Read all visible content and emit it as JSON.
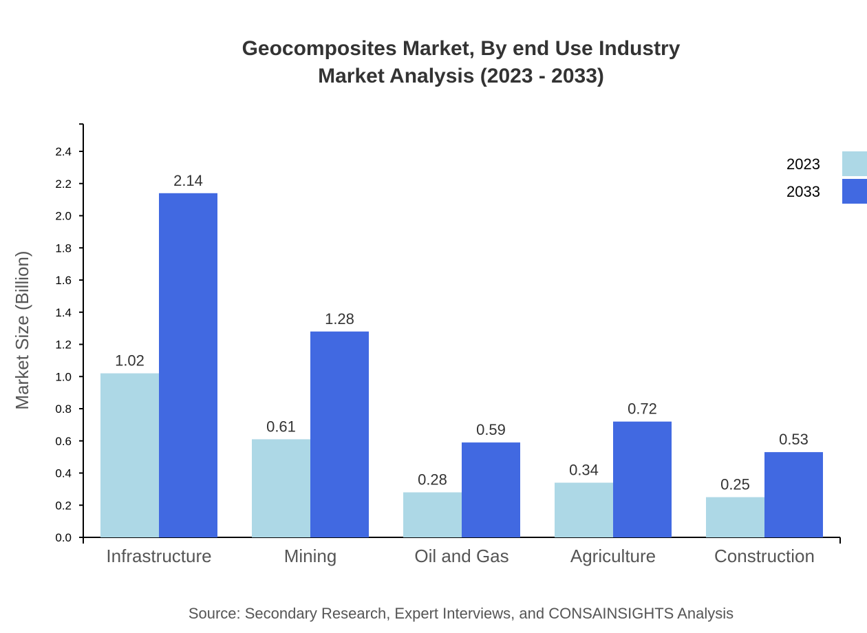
{
  "chart_data": {
    "type": "bar",
    "title": "Geocomposites Market, By end Use Industry",
    "subtitle": "Market Analysis (2023 - 2033)",
    "xlabel": "",
    "ylabel": "Market Size (Billion)",
    "categories": [
      "Infrastructure",
      "Mining",
      "Oil and Gas",
      "Agriculture",
      "Construction"
    ],
    "series": [
      {
        "name": "2023",
        "color": "#add8e6",
        "values": [
          1.02,
          0.61,
          0.28,
          0.34,
          0.25
        ]
      },
      {
        "name": "2033",
        "color": "#4169e1",
        "values": [
          2.14,
          1.28,
          0.59,
          0.72,
          0.53
        ]
      }
    ],
    "ylim": [
      0,
      2.57
    ],
    "yticks": [
      "0.0",
      "0.2",
      "0.4",
      "0.6",
      "0.8",
      "1.0",
      "1.2",
      "1.4",
      "1.6",
      "1.8",
      "2.0",
      "2.2",
      "2.4"
    ],
    "grid": false,
    "legend": "top-right",
    "source": "Source: Secondary Research, Expert Interviews, and CONSAINSIGHTS Analysis"
  }
}
